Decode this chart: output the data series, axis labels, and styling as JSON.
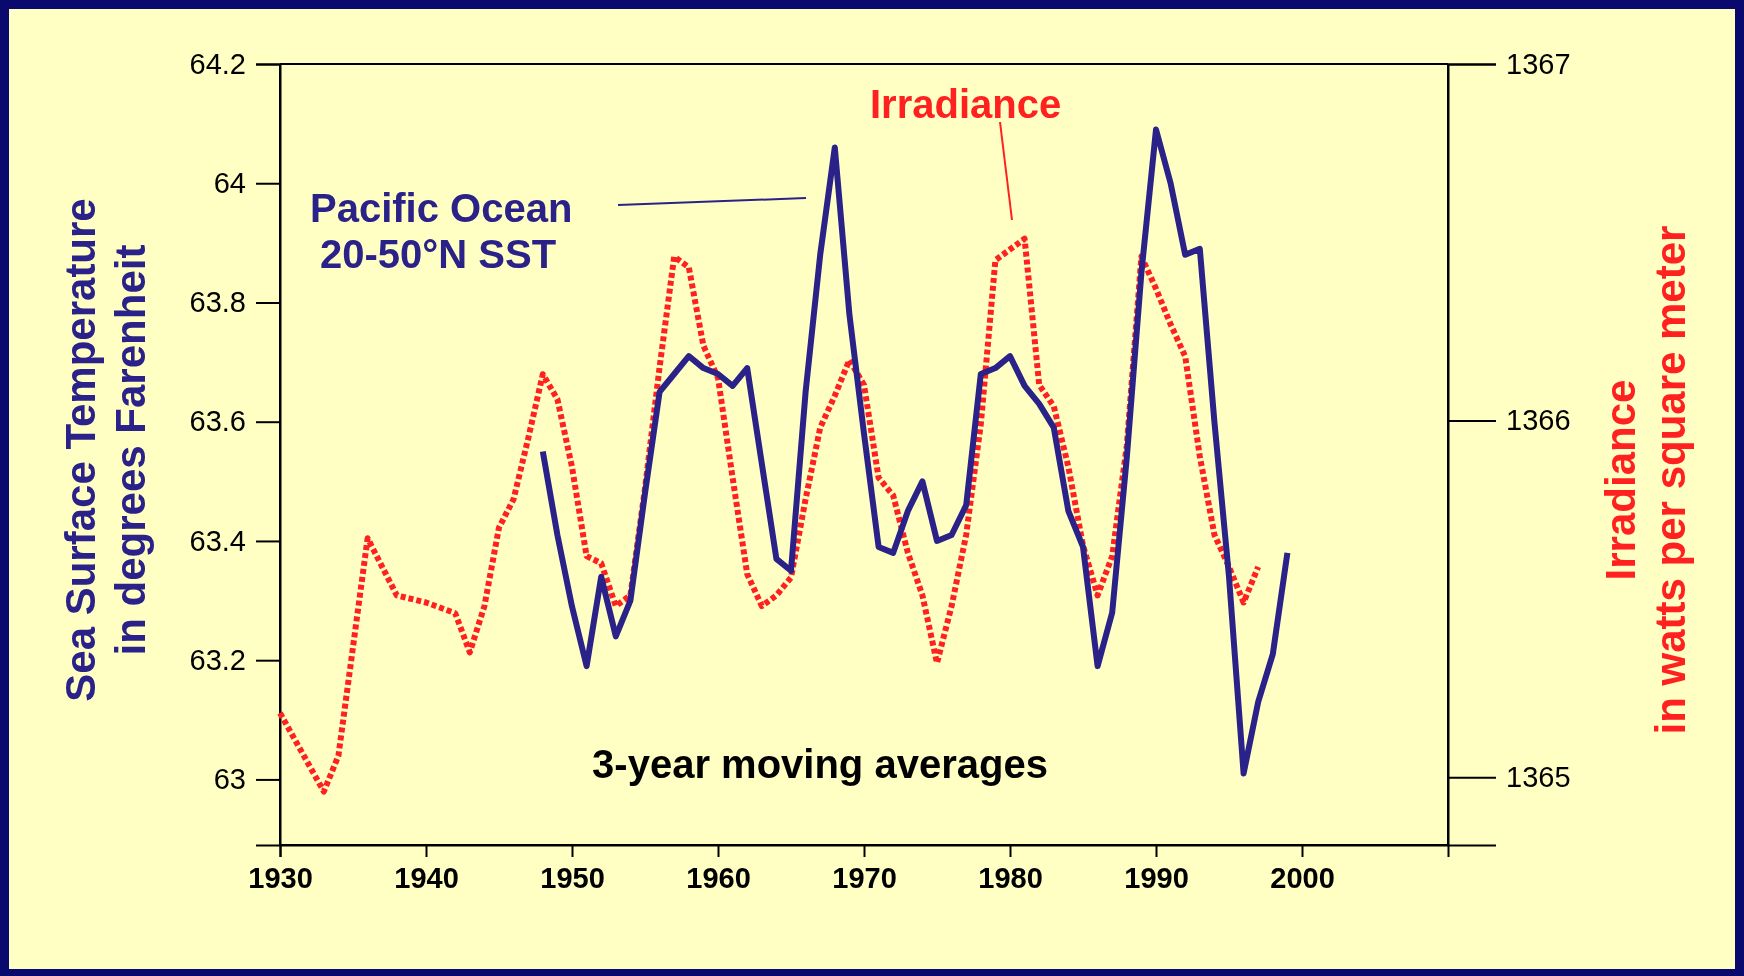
{
  "chart_data": {
    "type": "line",
    "xlabel": null,
    "ylabel": "Sea Surface Temperature\nin degrees Farenheit",
    "y2label": "Irradiance\nin watts per square meter",
    "annotations": [
      "3-year moving averages"
    ],
    "legend": "top left",
    "grid": false,
    "marker": "none",
    "xlim": [
      1930,
      2010
    ],
    "xticks": [
      1930,
      1940,
      1950,
      1960,
      1970,
      1980,
      1990,
      2000
    ],
    "ylim": [
      62.89,
      64.2
    ],
    "yticks": [
      63,
      63.2,
      63.4,
      63.6,
      63.8,
      64,
      64.2
    ],
    "y2lim": [
      1364.81,
      1367
    ],
    "y2ticks": [
      1365,
      1366,
      1367
    ],
    "series": [
      {
        "name": "Irradiance",
        "color": "#ff2020",
        "axis": "y2",
        "line_style": "dotted",
        "x": [
          1930,
          1933,
          1934,
          1936,
          1938,
          1940,
          1942,
          1943,
          1944,
          1945,
          1946,
          1947,
          1948,
          1949,
          1950,
          1951,
          1952,
          1953,
          1954,
          1955,
          1956,
          1957,
          1958,
          1959,
          1960,
          1961,
          1962,
          1963,
          1964,
          1965,
          1966,
          1967,
          1968,
          1969,
          1970,
          1971,
          1972,
          1973,
          1974,
          1975,
          1976,
          1977,
          1978,
          1979,
          1980,
          1981,
          1982,
          1983,
          1984,
          1985,
          1986,
          1987,
          1988,
          1989,
          1990,
          1991,
          1992,
          1993,
          1994,
          1995,
          1996,
          1997
        ],
        "values": [
          1365.18,
          1364.96,
          1365.06,
          1365.67,
          1365.51,
          1365.49,
          1365.46,
          1365.35,
          1365.48,
          1365.7,
          1365.78,
          1365.95,
          1366.13,
          1366.06,
          1365.87,
          1365.62,
          1365.6,
          1365.48,
          1365.51,
          1365.81,
          1366.15,
          1366.46,
          1366.43,
          1366.21,
          1366.12,
          1365.84,
          1365.57,
          1365.48,
          1365.51,
          1365.56,
          1365.78,
          1365.98,
          1366.07,
          1366.17,
          1366.1,
          1365.84,
          1365.79,
          1365.63,
          1365.51,
          1365.32,
          1365.48,
          1365.68,
          1365.99,
          1366.45,
          1366.48,
          1366.51,
          1366.1,
          1366.04,
          1365.87,
          1365.65,
          1365.51,
          1365.62,
          1365.93,
          1366.46,
          1366.37,
          1366.27,
          1366.18,
          1365.9,
          1365.68,
          1365.59,
          1365.49,
          1365.59
        ]
      },
      {
        "name": "Pacific Ocean 20-50°N SST",
        "color": "#2a2288",
        "line_style": "solid",
        "x": [
          1948,
          1949,
          1950,
          1951,
          1952,
          1953,
          1954,
          1955,
          1956,
          1957,
          1958,
          1959,
          1960,
          1961,
          1962,
          1963,
          1964,
          1965,
          1966,
          1967,
          1968,
          1969,
          1970,
          1971,
          1972,
          1973,
          1974,
          1975,
          1976,
          1977,
          1978,
          1979,
          1980,
          1981,
          1982,
          1983,
          1984,
          1985,
          1986,
          1987,
          1988,
          1989,
          1990,
          1991,
          1992,
          1993,
          1994,
          1995,
          1996,
          1997,
          1998,
          1999
        ],
        "values": [
          63.55,
          63.41,
          63.29,
          63.19,
          63.34,
          63.24,
          63.3,
          63.48,
          63.65,
          63.68,
          63.71,
          63.69,
          63.68,
          63.66,
          63.69,
          63.53,
          63.37,
          63.35,
          63.65,
          63.88,
          64.06,
          63.78,
          63.58,
          63.39,
          63.38,
          63.45,
          63.5,
          63.4,
          63.41,
          63.46,
          63.68,
          63.69,
          63.71,
          63.66,
          63.63,
          63.59,
          63.45,
          63.39,
          63.19,
          63.28,
          63.54,
          63.85,
          64.09,
          64,
          63.88,
          63.89,
          63.6,
          63.34,
          63.01,
          63.13,
          63.21,
          63.38
        ]
      }
    ]
  }
}
